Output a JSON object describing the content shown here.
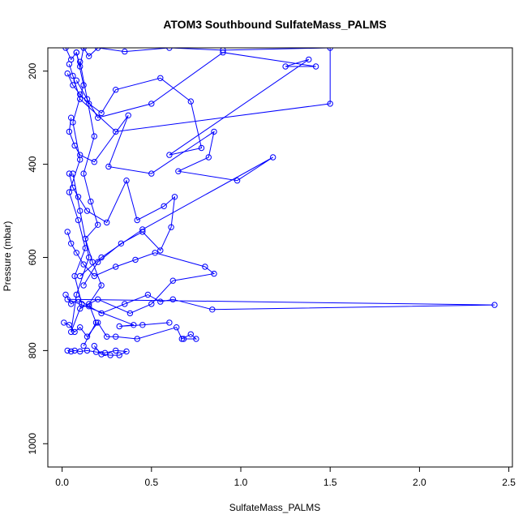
{
  "chart_data": {
    "type": "scatter",
    "title": "ATOM3 Southbound SulfateMass_PALMS",
    "xlabel": "SulfateMass_PALMS",
    "ylabel": "Pressure (mbar)",
    "xlim": [
      -0.08,
      2.52
    ],
    "ylim": [
      1050,
      150
    ],
    "y_reversed": true,
    "xticks": [
      0.0,
      0.5,
      1.0,
      1.5,
      2.0,
      2.5
    ],
    "xtick_labels": [
      "0.0",
      "0.5",
      "1.0",
      "1.5",
      "2.0",
      "2.5"
    ],
    "yticks": [
      200,
      400,
      600,
      800,
      1000
    ],
    "ytick_labels": [
      "200",
      "400",
      "600",
      "800",
      "1000"
    ],
    "grid": false,
    "legend": "none",
    "series_color": "#0000ff",
    "marker": "open-circle",
    "series": [
      {
        "x": [
          0.02,
          0.05,
          0.08,
          0.1,
          0.12,
          0.15,
          0.2,
          0.35,
          0.6,
          0.9,
          1.5,
          1.5,
          0.3,
          0.1,
          0.06,
          0.04
        ],
        "y": [
          150,
          175,
          160,
          190,
          150,
          168,
          150,
          158,
          150,
          155,
          150,
          270,
          330,
          260,
          210,
          185
        ]
      },
      {
        "x": [
          0.03,
          0.06,
          0.1,
          0.15,
          0.22,
          0.3,
          0.55,
          0.72,
          0.78,
          0.6,
          1.38,
          1.25,
          1.42,
          0.9,
          0.5,
          0.2,
          0.08
        ],
        "y": [
          205,
          230,
          250,
          270,
          290,
          240,
          215,
          265,
          365,
          380,
          175,
          190,
          190,
          160,
          270,
          300,
          220
        ]
      },
      {
        "x": [
          0.05,
          0.04,
          0.07,
          0.1,
          0.18,
          0.37,
          0.26,
          0.5,
          0.85,
          0.82,
          0.65,
          0.98,
          1.18,
          0.45,
          0.22,
          0.1
        ],
        "y": [
          300,
          330,
          360,
          380,
          395,
          295,
          405,
          420,
          330,
          385,
          415,
          435,
          385,
          540,
          600,
          640
        ]
      },
      {
        "x": [
          0.04,
          0.06,
          0.09,
          0.14,
          0.25,
          0.36,
          0.42,
          0.57,
          0.63,
          0.61,
          0.55,
          0.45,
          0.33,
          0.2,
          0.12
        ],
        "y": [
          420,
          450,
          470,
          500,
          525,
          435,
          520,
          490,
          470,
          535,
          585,
          545,
          570,
          610,
          660
        ]
      },
      {
        "x": [
          0.03,
          0.05,
          0.08,
          0.12,
          0.18,
          0.3,
          0.41,
          0.52,
          0.8,
          0.85,
          0.62,
          0.5,
          0.38,
          0.2,
          0.1
        ],
        "y": [
          545,
          570,
          590,
          615,
          640,
          620,
          605,
          590,
          620,
          635,
          650,
          700,
          720,
          690,
          710
        ]
      },
      {
        "x": [
          0.02,
          0.05,
          0.09,
          0.15,
          0.22,
          0.35,
          0.48,
          0.55,
          0.62,
          0.84,
          2.42,
          0.03,
          0.4,
          0.32,
          0.45,
          0.6
        ],
        "y": [
          680,
          700,
          690,
          705,
          720,
          700,
          680,
          695,
          690,
          712,
          702,
          690,
          745,
          748,
          745,
          740
        ]
      },
      {
        "x": [
          0.01,
          0.04,
          0.07,
          0.1,
          0.14,
          0.2,
          0.25,
          0.3,
          0.42,
          0.64,
          0.67,
          0.72,
          0.75,
          0.68
        ],
        "y": [
          740,
          745,
          760,
          750,
          770,
          740,
          770,
          770,
          775,
          750,
          775,
          765,
          775,
          775
        ]
      },
      {
        "x": [
          0.03,
          0.05,
          0.07,
          0.1,
          0.14,
          0.19,
          0.24,
          0.3,
          0.36,
          0.32,
          0.27,
          0.22,
          0.18
        ],
        "y": [
          800,
          802,
          800,
          802,
          800,
          803,
          805,
          800,
          802,
          810,
          810,
          808,
          790
        ]
      },
      {
        "x": [
          0.08,
          0.12,
          0.06,
          0.1,
          0.04,
          0.09,
          0.13,
          0.07,
          0.11,
          0.05,
          0.08,
          0.15,
          0.1,
          0.06
        ],
        "y": [
          160,
          230,
          310,
          390,
          460,
          520,
          580,
          640,
          700,
          760,
          680,
          600,
          500,
          420
        ]
      },
      {
        "x": [
          0.1,
          0.14,
          0.18,
          0.12,
          0.16,
          0.2,
          0.13,
          0.17,
          0.22,
          0.15,
          0.19,
          0.12
        ],
        "y": [
          180,
          260,
          340,
          420,
          480,
          530,
          560,
          610,
          660,
          700,
          740,
          790
        ]
      }
    ]
  }
}
